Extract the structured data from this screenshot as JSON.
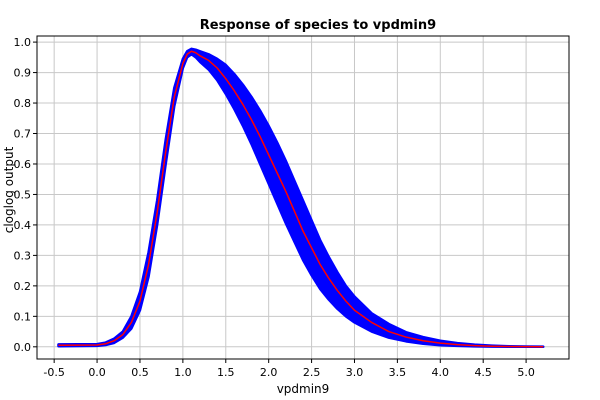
{
  "chart_data": {
    "type": "line",
    "title": "Response of species to vpdmin9",
    "xlabel": "vpdmin9",
    "ylabel": "cloglog output",
    "xlim": [
      -0.7,
      5.5
    ],
    "ylim": [
      -0.04,
      1.02
    ],
    "x_ticks": [
      -0.5,
      0.0,
      0.5,
      1.0,
      1.5,
      2.0,
      2.5,
      3.0,
      3.5,
      4.0,
      4.5,
      5.0
    ],
    "x_tick_labels": [
      "-0.5",
      "0.0",
      "0.5",
      "1.0",
      "1.5",
      "2.0",
      "2.5",
      "3.0",
      "3.5",
      "4.0",
      "4.5",
      "5.0"
    ],
    "y_ticks": [
      0.0,
      0.1,
      0.2,
      0.3,
      0.4,
      0.5,
      0.6,
      0.7,
      0.8,
      0.9,
      1.0
    ],
    "y_tick_labels": [
      "0.0",
      "0.1",
      "0.2",
      "0.3",
      "0.4",
      "0.5",
      "0.6",
      "0.7",
      "0.8",
      "0.9",
      "1.0"
    ],
    "grid": true,
    "series": [
      {
        "name": "",
        "color": "#ff0000",
        "x": [
          -0.45,
          0.0,
          0.1,
          0.2,
          0.3,
          0.4,
          0.5,
          0.6,
          0.7,
          0.8,
          0.9,
          1.0,
          1.05,
          1.1,
          1.15,
          1.2,
          1.3,
          1.4,
          1.5,
          1.6,
          1.7,
          1.8,
          1.9,
          2.0,
          2.1,
          2.2,
          2.3,
          2.4,
          2.5,
          2.6,
          2.7,
          2.8,
          2.9,
          3.0,
          3.2,
          3.4,
          3.6,
          3.8,
          4.0,
          4.2,
          4.4,
          4.6,
          4.8,
          5.0,
          5.2
        ],
        "y": [
          0.005,
          0.006,
          0.01,
          0.02,
          0.04,
          0.08,
          0.15,
          0.27,
          0.44,
          0.64,
          0.82,
          0.93,
          0.96,
          0.97,
          0.965,
          0.955,
          0.94,
          0.915,
          0.88,
          0.84,
          0.795,
          0.745,
          0.69,
          0.63,
          0.57,
          0.51,
          0.445,
          0.38,
          0.325,
          0.27,
          0.225,
          0.185,
          0.15,
          0.12,
          0.08,
          0.05,
          0.032,
          0.02,
          0.012,
          0.007,
          0.004,
          0.002,
          0.001,
          0.0005,
          0.0002
        ]
      },
      {
        "name": "",
        "color": "#0000ff",
        "role": "band",
        "x": [
          -0.45,
          0.0,
          0.1,
          0.2,
          0.3,
          0.4,
          0.5,
          0.6,
          0.7,
          0.8,
          0.9,
          1.0,
          1.05,
          1.1,
          1.15,
          1.2,
          1.3,
          1.4,
          1.5,
          1.6,
          1.7,
          1.8,
          1.9,
          2.0,
          2.1,
          2.2,
          2.3,
          2.4,
          2.5,
          2.6,
          2.7,
          2.8,
          2.9,
          3.0,
          3.2,
          3.4,
          3.6,
          3.8,
          4.0,
          4.2,
          4.4,
          4.6,
          4.8,
          5.0,
          5.2
        ],
        "y_lower": [
          0.002,
          0.003,
          0.006,
          0.013,
          0.03,
          0.06,
          0.12,
          0.23,
          0.4,
          0.6,
          0.79,
          0.915,
          0.95,
          0.96,
          0.95,
          0.935,
          0.91,
          0.875,
          0.83,
          0.78,
          0.725,
          0.665,
          0.6,
          0.535,
          0.47,
          0.405,
          0.345,
          0.285,
          0.235,
          0.19,
          0.155,
          0.125,
          0.1,
          0.08,
          0.05,
          0.03,
          0.018,
          0.01,
          0.005,
          0.003,
          0.0015,
          0.0008,
          0.0004,
          0.0002,
          0.0001
        ],
        "y_upper": [
          0.008,
          0.009,
          0.014,
          0.027,
          0.05,
          0.1,
          0.18,
          0.31,
          0.48,
          0.68,
          0.85,
          0.945,
          0.97,
          0.978,
          0.975,
          0.97,
          0.96,
          0.945,
          0.925,
          0.895,
          0.86,
          0.82,
          0.775,
          0.725,
          0.67,
          0.61,
          0.545,
          0.48,
          0.415,
          0.35,
          0.295,
          0.245,
          0.2,
          0.165,
          0.11,
          0.075,
          0.048,
          0.032,
          0.02,
          0.012,
          0.007,
          0.004,
          0.002,
          0.001,
          0.0005
        ]
      }
    ]
  }
}
